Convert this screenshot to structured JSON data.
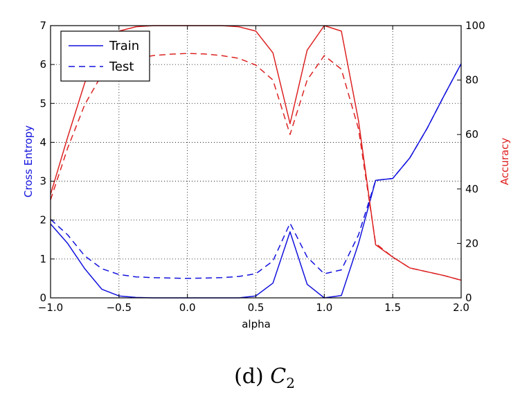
{
  "chart_data": {
    "type": "line",
    "title": "",
    "caption": {
      "prefix": "(d) ",
      "symbol": "C",
      "subscript": "2"
    },
    "xlabel": "alpha",
    "ylabel_left": "Cross Entropy",
    "ylabel_right": "Accuracy",
    "xlim": [
      -1.0,
      2.0
    ],
    "ylim_left": [
      0,
      7
    ],
    "ylim_right": [
      0,
      100
    ],
    "xticks": [
      "−1.0",
      "−0.5",
      "0.0",
      "0.5",
      "1.0",
      "1.5",
      "2.0"
    ],
    "yticks_left": [
      "0",
      "1",
      "2",
      "3",
      "4",
      "5",
      "6",
      "7"
    ],
    "yticks_right": [
      "0",
      "20",
      "40",
      "60",
      "80",
      "100"
    ],
    "grid": true,
    "legend": {
      "position": "top-left",
      "entries": [
        "Train",
        "Test"
      ]
    },
    "colors": {
      "loss": "#1111dd",
      "accuracy": "#dd2222"
    },
    "x": [
      -1.0,
      -0.875,
      -0.75,
      -0.625,
      -0.5,
      -0.375,
      -0.25,
      -0.125,
      0.0,
      0.125,
      0.25,
      0.375,
      0.5,
      0.625,
      0.75,
      0.875,
      1.0,
      1.125,
      1.25,
      1.375,
      1.5,
      1.625,
      1.75,
      1.875,
      2.0
    ],
    "series": [
      {
        "name": "Train",
        "axis": "left",
        "style": "solid",
        "values": [
          1.9,
          1.4,
          0.75,
          0.22,
          0.05,
          0.01,
          0.0,
          0.0,
          0.0,
          0.0,
          0.0,
          0.0,
          0.05,
          0.38,
          1.7,
          0.35,
          0.0,
          0.06,
          1.4,
          3.02,
          3.07,
          3.6,
          4.35,
          5.2,
          6.02
        ]
      },
      {
        "name": "Test",
        "axis": "left",
        "style": "dashed",
        "values": [
          2.02,
          1.62,
          1.08,
          0.75,
          0.6,
          0.54,
          0.52,
          0.51,
          0.5,
          0.51,
          0.52,
          0.55,
          0.62,
          0.95,
          1.92,
          1.05,
          0.62,
          0.72,
          1.62,
          3.02,
          3.07,
          3.6,
          4.35,
          5.2,
          6.02
        ]
      },
      {
        "name": "Train",
        "axis": "right",
        "style": "solid",
        "values": [
          38,
          59,
          79,
          93,
          98,
          99.6,
          100,
          100,
          100,
          100,
          100,
          99.6,
          98,
          90,
          64,
          91,
          100,
          98,
          65,
          19.5,
          15,
          11,
          9.6,
          8.2,
          6.5
        ]
      },
      {
        "name": "Test",
        "axis": "right",
        "style": "dashed",
        "values": [
          36,
          55,
          71,
          82,
          86,
          88,
          89,
          89.5,
          89.8,
          89.6,
          89,
          88,
          85.5,
          80,
          60,
          80,
          89,
          84,
          62,
          20,
          15,
          11,
          9.6,
          8.2,
          6.5
        ]
      }
    ]
  }
}
